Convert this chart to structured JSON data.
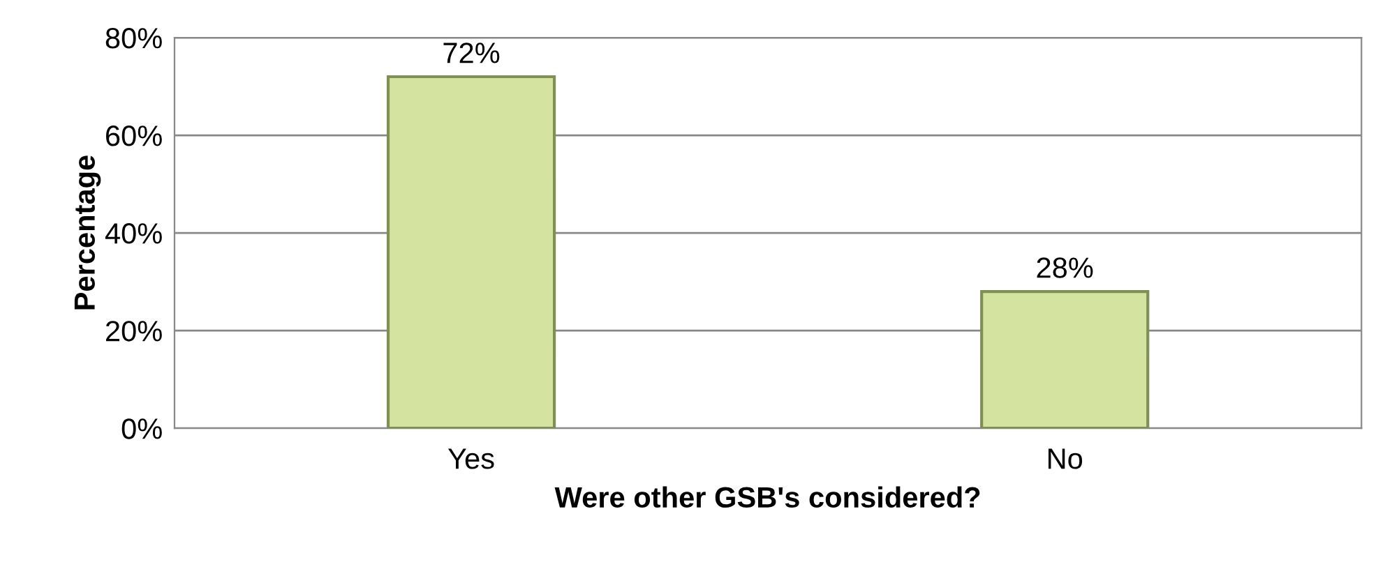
{
  "chart_data": {
    "type": "bar",
    "xlabel": "Were other GSB's considered?",
    "ylabel": "Percentage",
    "categories": [
      "Yes",
      "No"
    ],
    "series": [
      {
        "color": "#d4e3a0",
        "values": [
          72,
          28
        ],
        "value_labels": [
          "72%",
          "28%"
        ]
      }
    ],
    "ylim": [
      0,
      80
    ],
    "yticks": [
      {
        "value": 0,
        "label": "0%"
      },
      {
        "value": 20,
        "label": "20%"
      },
      {
        "value": 40,
        "label": "40%"
      },
      {
        "value": 60,
        "label": "60%"
      },
      {
        "value": 80,
        "label": "80%"
      }
    ],
    "grid": "y",
    "legend": false
  }
}
